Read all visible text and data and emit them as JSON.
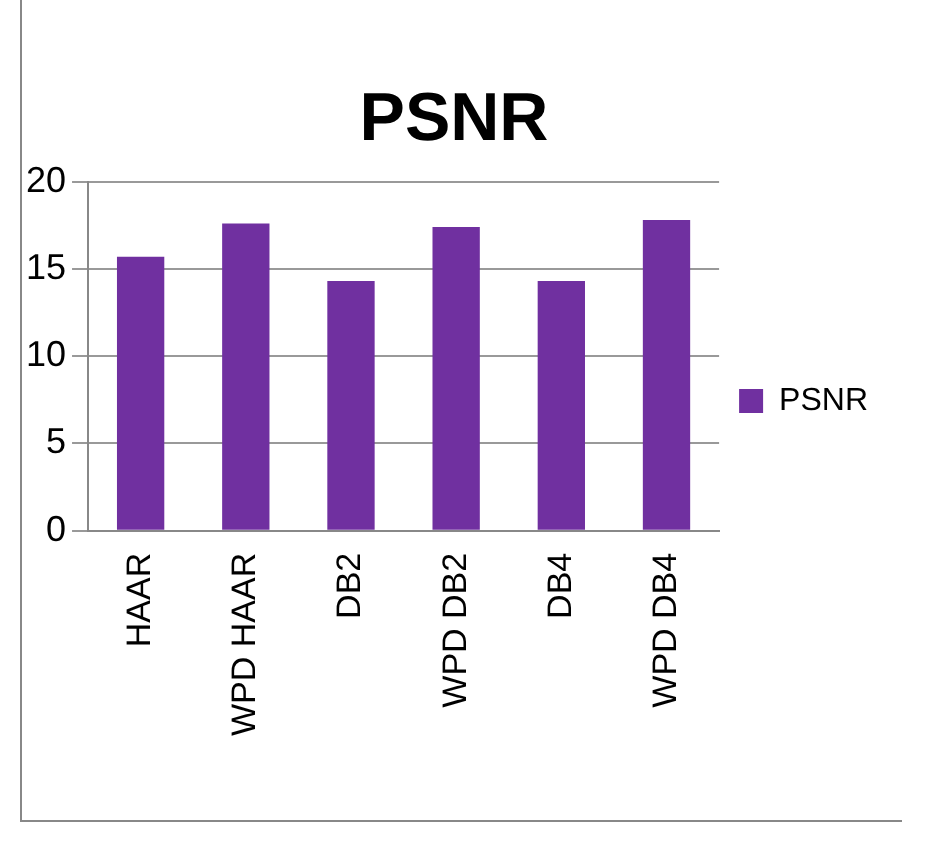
{
  "chart_data": {
    "type": "bar",
    "title": "PSNR",
    "categories": [
      "HAAR",
      "WPD HAAR",
      "DB2",
      "WPD DB2",
      "DB4",
      "WPD DB4"
    ],
    "series": [
      {
        "name": "PSNR",
        "color": "#7030a0",
        "values": [
          15.7,
          17.6,
          14.3,
          17.4,
          14.3,
          17.8
        ]
      }
    ],
    "ylim": [
      0,
      20
    ],
    "yticks": [
      0,
      5,
      10,
      15,
      20
    ],
    "grid": "y",
    "legend": "right"
  }
}
